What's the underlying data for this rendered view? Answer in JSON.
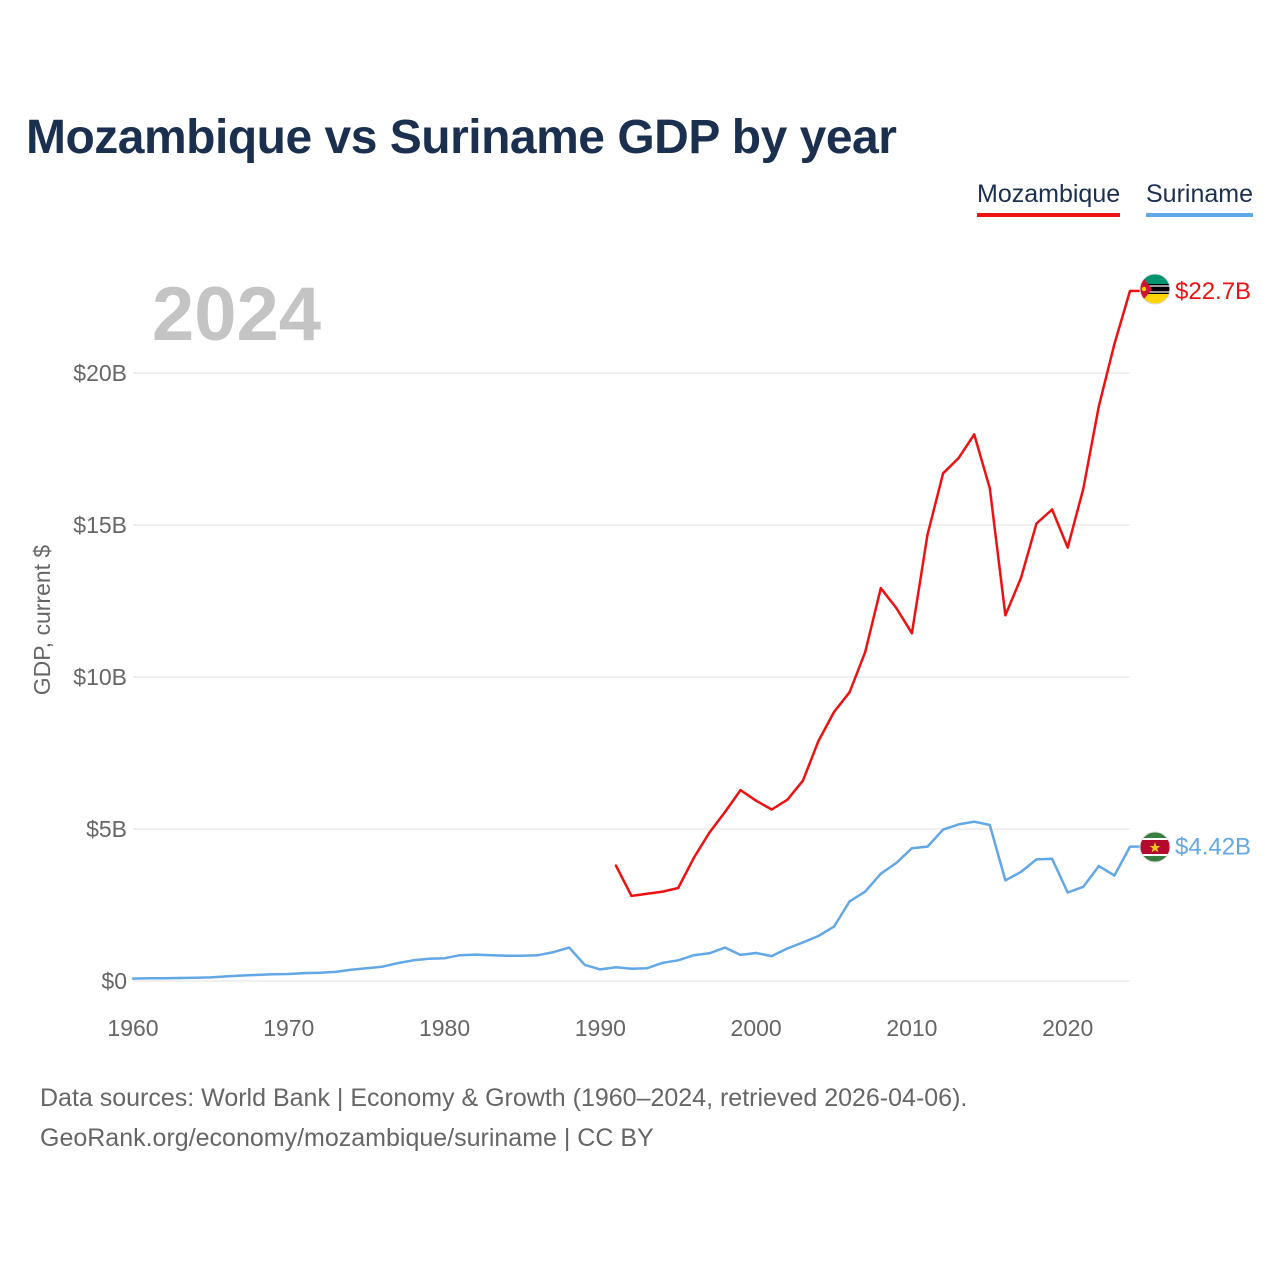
{
  "colors": {
    "mozambique": "#ee1111",
    "suriname": "#63a8e6",
    "title": "#1b2f4f",
    "axis_text": "#666666",
    "year_watermark": "#c4c4c4",
    "grid": "#e6e6e6"
  },
  "chart_data": {
    "type": "line",
    "title": "Mozambique vs Suriname GDP by year",
    "ylabel": "GDP, current $",
    "xlabel": "",
    "current_year_label": "2024",
    "xlim": [
      1960,
      2024
    ],
    "ylim": [
      0,
      23
    ],
    "x_ticks": [
      1960,
      1970,
      1980,
      1990,
      2000,
      2010,
      2020
    ],
    "y_ticks": [
      {
        "value": 0,
        "label": "$0"
      },
      {
        "value": 5,
        "label": "$5B"
      },
      {
        "value": 10,
        "label": "$10B"
      },
      {
        "value": 15,
        "label": "$15B"
      },
      {
        "value": 20,
        "label": "$20B"
      }
    ],
    "grid": true,
    "legend": [
      "Mozambique",
      "Suriname"
    ],
    "legend_position": "top-right",
    "series": [
      {
        "name": "Mozambique",
        "end_label": "$22.7B",
        "flag": "mozambique-flag-icon",
        "points": [
          [
            1991,
            3.8
          ],
          [
            1992,
            2.8
          ],
          [
            1993,
            2.87
          ],
          [
            1994,
            2.94
          ],
          [
            1995,
            3.06
          ],
          [
            1996,
            4.05
          ],
          [
            1997,
            4.88
          ],
          [
            1998,
            5.56
          ],
          [
            1999,
            6.28
          ],
          [
            2000,
            5.93
          ],
          [
            2001,
            5.64
          ],
          [
            2002,
            5.96
          ],
          [
            2003,
            6.59
          ],
          [
            2004,
            7.89
          ],
          [
            2005,
            8.85
          ],
          [
            2006,
            9.5
          ],
          [
            2007,
            10.82
          ],
          [
            2008,
            12.92
          ],
          [
            2009,
            12.27
          ],
          [
            2010,
            11.44
          ],
          [
            2011,
            14.68
          ],
          [
            2012,
            16.7
          ],
          [
            2013,
            17.2
          ],
          [
            2014,
            17.98
          ],
          [
            2015,
            16.21
          ],
          [
            2016,
            12.03
          ],
          [
            2017,
            13.26
          ],
          [
            2018,
            15.05
          ],
          [
            2019,
            15.51
          ],
          [
            2020,
            14.26
          ],
          [
            2021,
            16.19
          ],
          [
            2022,
            18.9
          ],
          [
            2023,
            20.95
          ],
          [
            2024,
            22.7
          ]
        ]
      },
      {
        "name": "Suriname",
        "end_label": "$4.42B",
        "flag": "suriname-flag-icon",
        "points": [
          [
            1960,
            0.08
          ],
          [
            1961,
            0.09
          ],
          [
            1962,
            0.09
          ],
          [
            1963,
            0.1
          ],
          [
            1964,
            0.11
          ],
          [
            1965,
            0.12
          ],
          [
            1966,
            0.15
          ],
          [
            1967,
            0.18
          ],
          [
            1968,
            0.2
          ],
          [
            1969,
            0.22
          ],
          [
            1970,
            0.23
          ],
          [
            1971,
            0.26
          ],
          [
            1972,
            0.27
          ],
          [
            1973,
            0.3
          ],
          [
            1974,
            0.37
          ],
          [
            1975,
            0.42
          ],
          [
            1976,
            0.47
          ],
          [
            1977,
            0.59
          ],
          [
            1978,
            0.68
          ],
          [
            1979,
            0.73
          ],
          [
            1980,
            0.75
          ],
          [
            1981,
            0.85
          ],
          [
            1982,
            0.87
          ],
          [
            1983,
            0.85
          ],
          [
            1984,
            0.83
          ],
          [
            1985,
            0.83
          ],
          [
            1986,
            0.85
          ],
          [
            1987,
            0.95
          ],
          [
            1988,
            1.1
          ],
          [
            1989,
            0.53
          ],
          [
            1990,
            0.38
          ],
          [
            1991,
            0.45
          ],
          [
            1992,
            0.4
          ],
          [
            1993,
            0.42
          ],
          [
            1994,
            0.6
          ],
          [
            1995,
            0.68
          ],
          [
            1996,
            0.85
          ],
          [
            1997,
            0.91
          ],
          [
            1998,
            1.1
          ],
          [
            1999,
            0.86
          ],
          [
            2000,
            0.92
          ],
          [
            2001,
            0.82
          ],
          [
            2002,
            1.07
          ],
          [
            2003,
            1.27
          ],
          [
            2004,
            1.48
          ],
          [
            2005,
            1.79
          ],
          [
            2006,
            2.62
          ],
          [
            2007,
            2.94
          ],
          [
            2008,
            3.53
          ],
          [
            2009,
            3.88
          ],
          [
            2010,
            4.37
          ],
          [
            2011,
            4.42
          ],
          [
            2012,
            4.98
          ],
          [
            2013,
            5.15
          ],
          [
            2014,
            5.24
          ],
          [
            2015,
            5.13
          ],
          [
            2016,
            3.31
          ],
          [
            2017,
            3.59
          ],
          [
            2018,
            4.0
          ],
          [
            2019,
            4.02
          ],
          [
            2020,
            2.91
          ],
          [
            2021,
            3.1
          ],
          [
            2022,
            3.78
          ],
          [
            2023,
            3.47
          ],
          [
            2024,
            4.42
          ]
        ]
      }
    ]
  },
  "footer": {
    "line1": "Data sources: World Bank | Economy & Growth (1960–2024, retrieved 2026-04-06).",
    "line2": "GeoRank.org/economy/mozambique/suriname | CC BY"
  }
}
